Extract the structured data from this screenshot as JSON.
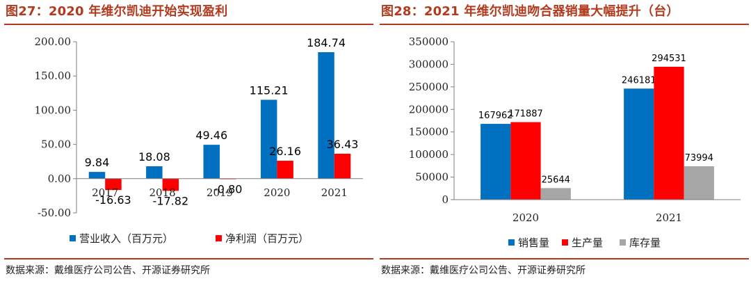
{
  "left": {
    "title": "图27：2020 年维尔凯迪开始实现盈利",
    "source": "数据来源：戴维医疗公司公告、开源证券研究所",
    "chart_data": {
      "type": "bar",
      "categories": [
        "2017",
        "2018",
        "2019",
        "2020",
        "2021"
      ],
      "series": [
        {
          "name": "营业收入（百万元）",
          "color": "#0070c0",
          "values": [
            9.84,
            18.08,
            49.46,
            115.21,
            184.74
          ],
          "labels": [
            "9.84",
            "18.08",
            "49.46",
            "115.21",
            "184.74"
          ]
        },
        {
          "name": "净利润（百万元）",
          "color": "#ff0000",
          "values": [
            -16.63,
            -17.82,
            -0.8,
            26.16,
            36.43
          ],
          "labels": [
            "-16.63",
            "-17.82",
            "-0.80",
            "26.16",
            "36.43"
          ]
        }
      ],
      "ylim": [
        -50,
        200
      ],
      "yticks": [
        "-50.00",
        "0.00",
        "50.00",
        "100.00",
        "150.00",
        "200.00"
      ],
      "ytick_values": [
        -50,
        0,
        50,
        100,
        150,
        200
      ],
      "legend_position": "bottom",
      "grid": false
    }
  },
  "right": {
    "title": "图28：2021 年维尔凯迪吻合器销量大幅提升（台）",
    "source": "数据来源：戴维医疗公司公告、开源证券研究所",
    "chart_data": {
      "type": "bar",
      "categories": [
        "2020",
        "2021"
      ],
      "series": [
        {
          "name": "销售量",
          "color": "#0070c0",
          "values": [
            167962,
            246181
          ],
          "labels": [
            "167962",
            "246181"
          ]
        },
        {
          "name": "生产量",
          "color": "#ff0000",
          "values": [
            171887,
            294531
          ],
          "labels": [
            "171887",
            "294531"
          ]
        },
        {
          "name": "库存量",
          "color": "#a6a6a6",
          "values": [
            25644,
            73994
          ],
          "labels": [
            "25644",
            "73994"
          ]
        }
      ],
      "ylim": [
        0,
        350000
      ],
      "yticks": [
        "0",
        "50000",
        "100000",
        "150000",
        "200000",
        "250000",
        "300000",
        "350000"
      ],
      "ytick_values": [
        0,
        50000,
        100000,
        150000,
        200000,
        250000,
        300000,
        350000
      ],
      "legend_position": "bottom",
      "grid": false
    }
  }
}
